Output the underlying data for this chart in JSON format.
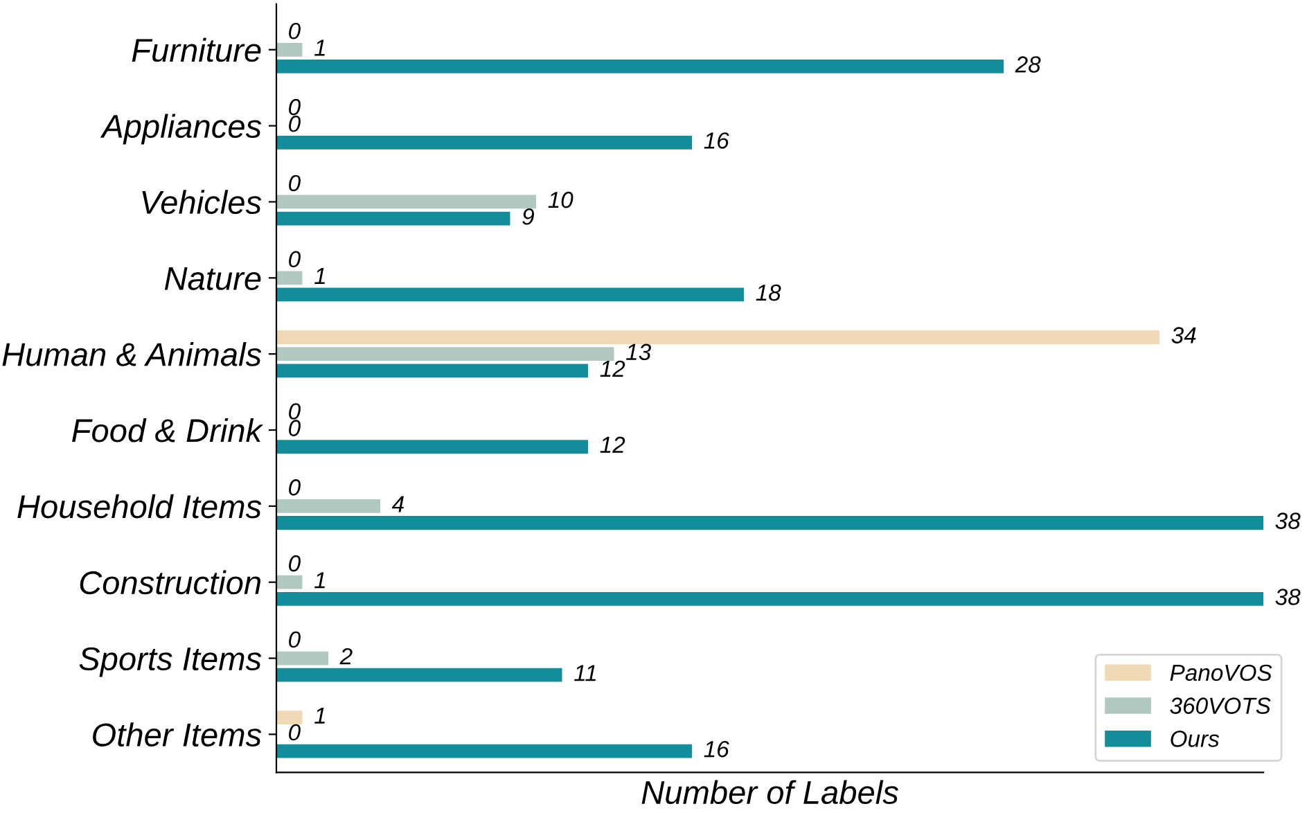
{
  "chart_data": {
    "type": "bar",
    "orientation": "horizontal",
    "xlabel": "Number of Labels",
    "categories": [
      "Furniture",
      "Appliances",
      "Vehicles",
      "Nature",
      "Human & Animals",
      "Food & Drink",
      "Household Items",
      "Construction",
      "Sports Items",
      "Other Items"
    ],
    "series": [
      {
        "name": "PanoVOS",
        "color": "#f0d9b5",
        "values": [
          0,
          0,
          0,
          0,
          34,
          0,
          0,
          0,
          0,
          1
        ]
      },
      {
        "name": "360VOTS",
        "color": "#b0c8c0",
        "values": [
          1,
          0,
          10,
          1,
          13,
          0,
          4,
          1,
          2,
          0
        ]
      },
      {
        "name": "Ours",
        "color": "#128d99",
        "values": [
          28,
          16,
          9,
          18,
          12,
          12,
          38,
          38,
          11,
          16
        ]
      }
    ],
    "xlim": [
      0,
      38
    ],
    "data_labels": true,
    "legend": "bottom right",
    "tick_labels": "y",
    "grid": false
  }
}
